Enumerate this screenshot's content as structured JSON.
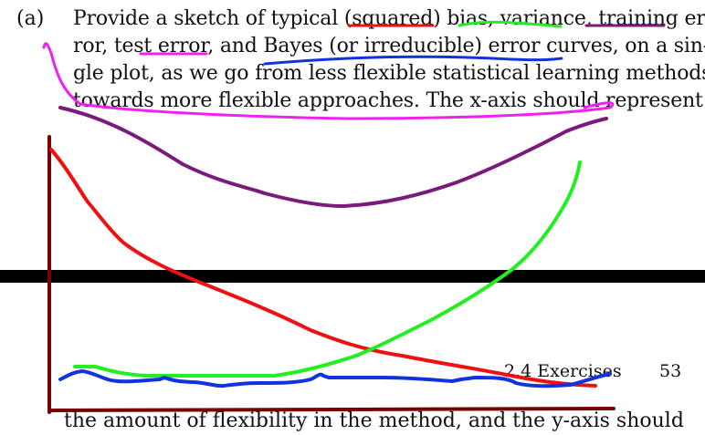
{
  "question": {
    "label": "(a)",
    "lines": [
      "Provide a sketch of typical (squared) bias, variance, training er-",
      "ror, test error, and Bayes (or irreducible) error curves, on a sin-",
      "gle plot, as we go from less flexible statistical learning methods",
      "towards more flexible approaches. The x-axis should represent"
    ]
  },
  "page_footer": {
    "section": "2.4 Exercises",
    "page_number": "53"
  },
  "bottom_partial_line": "the amount of flexibility in the method, and the y-axis should",
  "colors": {
    "bias": "#ee1111",
    "variance": "#22ee22",
    "training_error": "#1133dd",
    "test_error": "#7a1a7a",
    "bayes_error": "#1133dd",
    "circle": "#ee22ee",
    "axes": "#7a0000",
    "redaction_bar": "#000000"
  }
}
